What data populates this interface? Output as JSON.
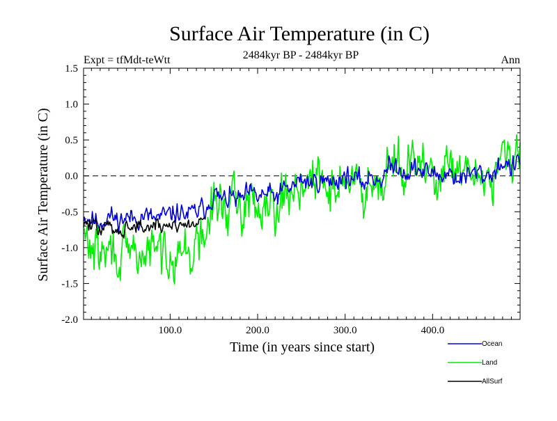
{
  "chart_data": {
    "type": "line",
    "title": "Surface Air Temperature (in C)",
    "subtitle": "2484kyr BP - 2484kyr BP",
    "experiment_label": "Expt = tfMdt-teWtt",
    "season_label": "Ann",
    "xlabel": "Time (in years since start)",
    "ylabel": "Surface Air Temperature (in C)",
    "xlim": [
      1,
      500
    ],
    "ylim": [
      -2.0,
      1.5
    ],
    "x_ticks": [
      100,
      200,
      300,
      400
    ],
    "x_tick_labels": [
      "100.0",
      "200.0",
      "300.0",
      "400.0"
    ],
    "y_ticks": [
      -2.0,
      -1.5,
      -1.0,
      -0.5,
      0.0,
      0.5,
      1.0,
      1.5
    ],
    "y_tick_labels": [
      "-2.0",
      "-1.5",
      "-1.0",
      "-0.5",
      "0.0",
      "0.5",
      "1.0",
      "1.5"
    ],
    "reference_line": 0.0,
    "legend_position": "bottom-right",
    "series_anchor_step_years": 10,
    "series": [
      {
        "name": "Ocean",
        "color": "#0000dd",
        "x": [
          1,
          10,
          20,
          30,
          40,
          50,
          60,
          70,
          80,
          90,
          100,
          110,
          120,
          130,
          140,
          150,
          160,
          170,
          180,
          190,
          200,
          210,
          220,
          230,
          240,
          250,
          260,
          270,
          280,
          290,
          300,
          310,
          320,
          330,
          340,
          350,
          360,
          370,
          380,
          390,
          400,
          410,
          420,
          430,
          440,
          450,
          460,
          470,
          480,
          490,
          500
        ],
        "y": [
          -0.55,
          -0.6,
          -0.65,
          -0.55,
          -0.62,
          -0.58,
          -0.6,
          -0.55,
          -0.6,
          -0.58,
          -0.55,
          -0.5,
          -0.55,
          -0.5,
          -0.45,
          -0.25,
          -0.35,
          -0.3,
          -0.35,
          -0.25,
          -0.3,
          -0.25,
          -0.3,
          -0.2,
          -0.15,
          -0.05,
          -0.1,
          -0.05,
          -0.1,
          -0.05,
          0.0,
          -0.05,
          -0.1,
          0.0,
          -0.05,
          0.1,
          0.15,
          0.05,
          0.1,
          0.05,
          0.05,
          0.0,
          0.05,
          -0.05,
          0.0,
          0.05,
          0.0,
          0.05,
          0.2,
          0.1,
          0.2
        ]
      },
      {
        "name": "Land",
        "color": "#00ee00",
        "x": [
          1,
          10,
          20,
          30,
          40,
          50,
          60,
          70,
          80,
          90,
          100,
          110,
          120,
          130,
          140,
          150,
          160,
          170,
          180,
          190,
          200,
          210,
          220,
          230,
          240,
          250,
          260,
          270,
          280,
          290,
          300,
          310,
          320,
          330,
          340,
          350,
          360,
          370,
          380,
          390,
          400,
          410,
          420,
          430,
          440,
          450,
          460,
          470,
          480,
          490,
          500
        ],
        "y": [
          -0.85,
          -1.0,
          -1.1,
          -1.05,
          -1.1,
          -1.15,
          -1.05,
          -1.15,
          -1.0,
          -1.1,
          -1.05,
          -1.0,
          -1.1,
          -1.0,
          -0.85,
          -0.35,
          -0.45,
          -0.4,
          -0.45,
          -0.35,
          -0.4,
          -0.3,
          -0.35,
          -0.3,
          -0.2,
          -0.05,
          -0.15,
          -0.05,
          -0.2,
          -0.1,
          -0.05,
          -0.1,
          -0.2,
          0.0,
          -0.05,
          0.2,
          0.25,
          0.05,
          0.15,
          0.1,
          0.05,
          -0.05,
          0.1,
          -0.05,
          0.0,
          0.05,
          0.0,
          0.0,
          0.35,
          0.1,
          0.3
        ]
      },
      {
        "name": "AllSurf",
        "color": "#000000",
        "x": [
          1,
          10,
          20,
          30,
          40,
          50,
          60,
          70,
          80,
          90,
          100,
          110,
          120,
          130,
          140
        ],
        "y": [
          -0.65,
          -0.7,
          -0.75,
          -0.7,
          -0.75,
          -0.72,
          -0.7,
          -0.72,
          -0.7,
          -0.72,
          -0.68,
          -0.65,
          -0.7,
          -0.65,
          -0.58
        ]
      }
    ]
  }
}
